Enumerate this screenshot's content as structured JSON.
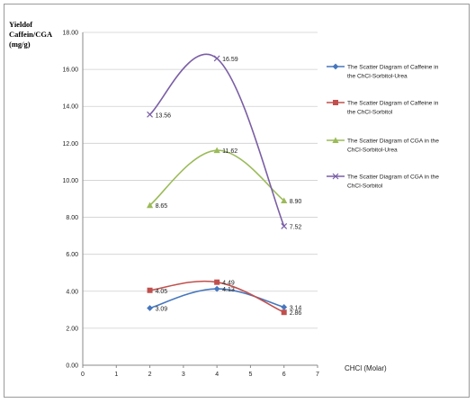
{
  "chart_data": {
    "type": "line",
    "title": "",
    "ylabel_lines": [
      "Yieldof",
      "Caffein/CGA",
      "(mg/g)"
    ],
    "xlabel": "CHCl (Molar)",
    "xlim": [
      0,
      7
    ],
    "ylim": [
      0,
      18
    ],
    "x_ticks": [
      "0",
      "1",
      "2",
      "3",
      "4",
      "5",
      "6",
      "7"
    ],
    "y_ticks": [
      "0.00",
      "2.00",
      "4.00",
      "6.00",
      "8.00",
      "10.00",
      "12.00",
      "14.00",
      "16.00",
      "18.00"
    ],
    "grid": "horizontal",
    "smooth": true,
    "legend_position": "right",
    "series": [
      {
        "name_lines": [
          "The Scatter Diagram of Caffeine in",
          "the ChCl-Sorbitol-Urea"
        ],
        "color": "#4677be",
        "marker": "diamond",
        "x": [
          2,
          4,
          6
        ],
        "y": [
          3.09,
          4.13,
          3.14
        ],
        "labels": [
          "3.09",
          "4.13",
          "3.14"
        ]
      },
      {
        "name_lines": [
          "The Scatter Diagram of Caffeine in",
          "the ChCl-Sorbitol"
        ],
        "color": "#c0504d",
        "marker": "square",
        "x": [
          2,
          4,
          6
        ],
        "y": [
          4.05,
          4.49,
          2.86
        ],
        "labels": [
          "4.05",
          "4.49",
          "2.86"
        ]
      },
      {
        "name_lines": [
          "The Scatter Diagram of CGA in the",
          "ChCl-Sorbitol-Urea"
        ],
        "color": "#9bbb59",
        "marker": "triangle",
        "x": [
          2,
          4,
          6
        ],
        "y": [
          8.65,
          11.62,
          8.9
        ],
        "labels": [
          "8.65",
          "11.62",
          "8.90"
        ]
      },
      {
        "name_lines": [
          "The Scatter Diagram of CGA in the",
          "ChCl-Sorbitol"
        ],
        "color": "#7a5ea5",
        "marker": "x",
        "x": [
          2,
          4,
          6
        ],
        "y": [
          13.56,
          16.59,
          7.52
        ],
        "labels": [
          "13.56",
          "16.59",
          "7.52"
        ]
      }
    ]
  }
}
